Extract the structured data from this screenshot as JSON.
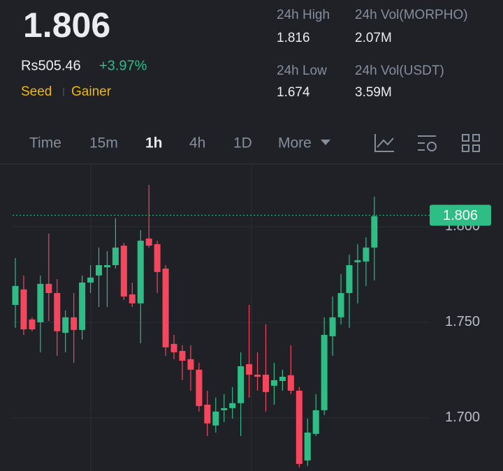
{
  "header": {
    "price": "1.806",
    "fiat": "Rs505.46",
    "change": "+3.97%",
    "tags": [
      "Seed",
      "Gainer"
    ],
    "stats": [
      {
        "label": "24h High",
        "value": "1.816"
      },
      {
        "label": "24h Vol(MORPHO)",
        "value": "2.07M"
      },
      {
        "label": "24h Low",
        "value": "1.674"
      },
      {
        "label": "24h Vol(USDT)",
        "value": "3.59M"
      }
    ]
  },
  "tabs": [
    "Time",
    "15m",
    "1h",
    "4h",
    "1D",
    "More"
  ],
  "chart_data": {
    "type": "candlestick",
    "up_color": "#2ebd85",
    "down_color": "#f6465d",
    "open": [
      1.7591,
      1.7672,
      1.7515,
      1.75,
      1.7701,
      1.7653,
      1.7445,
      1.7526,
      1.746,
      1.7708,
      1.7745,
      1.7788,
      1.7799,
      1.7901,
      1.7646,
      1.7599,
      1.7938,
      1.7909,
      1.7781,
      1.7387,
      1.735,
      1.7307,
      1.7252,
      1.7069,
      1.696,
      1.704,
      1.7051,
      1.7077,
      1.7281,
      1.7226,
      1.7226,
      1.7168,
      1.7193,
      1.7223,
      1.7142,
      1.6777,
      1.6916,
      1.704,
      1.7427,
      1.7526,
      1.7653,
      1.7814,
      1.7818,
      1.7891
    ],
    "high": [
      1.7836,
      1.7745,
      1.7526,
      1.7745,
      1.7964,
      1.7726,
      1.7562,
      1.7653,
      1.7745,
      1.7799,
      1.7891,
      1.7872,
      1.8044,
      1.7916,
      1.7708,
      1.7982,
      1.8219,
      1.7927,
      1.7799,
      1.7434,
      1.738,
      1.738,
      1.7288,
      1.7142,
      1.7106,
      1.7124,
      1.7161,
      1.7343,
      1.7591,
      1.7343,
      1.7489,
      1.7288,
      1.7252,
      1.738,
      1.7161,
      1.6996,
      1.7124,
      1.7526,
      1.7635,
      1.7752,
      1.7854,
      1.7909,
      1.7945,
      1.8157
    ],
    "low": [
      1.7471,
      1.7434,
      1.7453,
      1.7343,
      1.7507,
      1.7325,
      1.7343,
      1.7288,
      1.7409,
      1.7653,
      1.758,
      1.758,
      1.7781,
      1.7617,
      1.758,
      1.739,
      1.7891,
      1.7653,
      1.7325,
      1.7307,
      1.7197,
      1.7142,
      1.7033,
      1.6905,
      1.6923,
      1.6978,
      1.6996,
      1.6905,
      1.7106,
      1.7142,
      1.7033,
      1.7069,
      1.7142,
      1.7124,
      1.6741,
      1.6748,
      1.6905,
      1.7015,
      1.7325,
      1.7489,
      1.7471,
      1.7599,
      1.769,
      1.7719
    ],
    "close": [
      1.769,
      1.7463,
      1.7463,
      1.7701,
      1.7653,
      1.7453,
      1.7526,
      1.746,
      1.7708,
      1.7734,
      1.7799,
      1.7799,
      1.7891,
      1.7635,
      1.7599,
      1.7927,
      1.7901,
      1.7763,
      1.7369,
      1.7343,
      1.7299,
      1.7252,
      1.7062,
      1.6971,
      1.7033,
      1.7051,
      1.7077,
      1.727,
      1.7226,
      1.7215,
      1.7135,
      1.7197,
      1.7215,
      1.7142,
      1.6759,
      1.6923,
      1.704,
      1.7434,
      1.7526,
      1.7653,
      1.7799,
      1.7825,
      1.7891,
      1.8055
    ],
    "last_price": 1.806,
    "ylim": [
      1.6722,
      1.8321
    ],
    "yticks": [
      {
        "value": 1.7,
        "label": "1.700"
      },
      {
        "value": 1.75,
        "label": "1.750"
      },
      {
        "value": 1.8,
        "label": "1.800"
      }
    ],
    "grid": true
  }
}
